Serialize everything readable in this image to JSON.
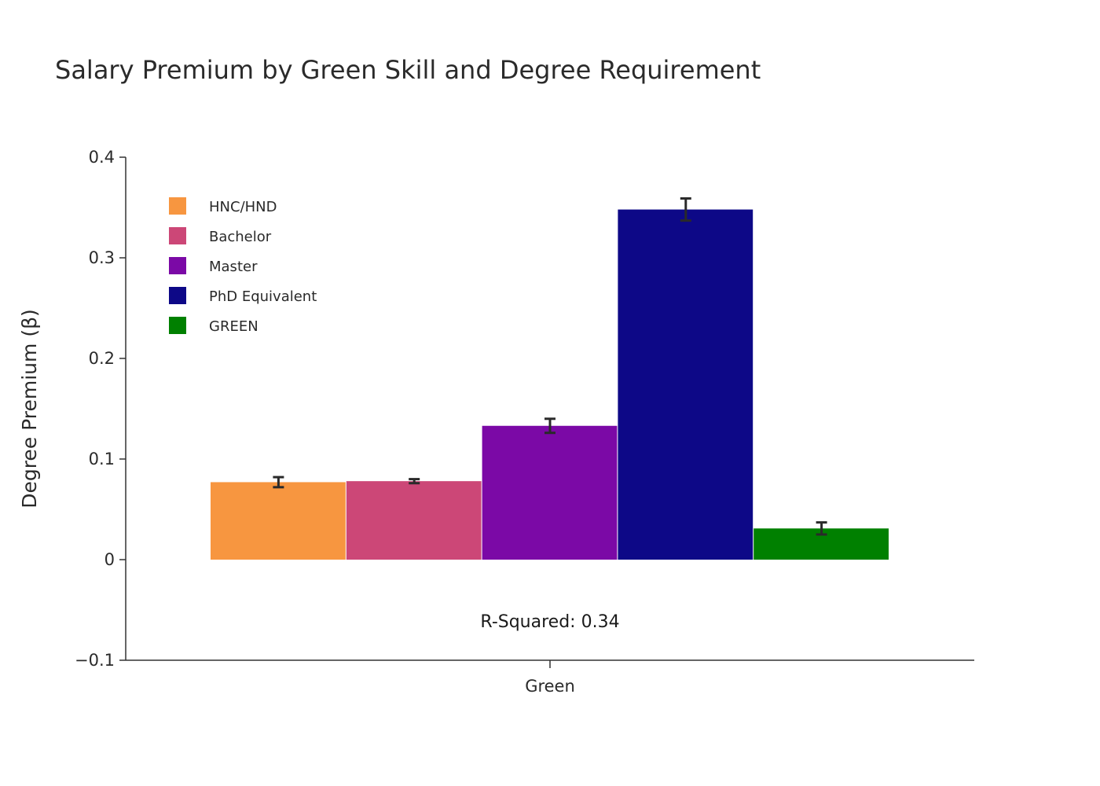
{
  "chart_data": {
    "type": "bar",
    "title": "Salary Premium by Green Skill and Degree Requirement",
    "xlabel": "",
    "ylabel": "Degree Premium (β)",
    "categories": [
      "Green"
    ],
    "ylim": [
      -0.1,
      0.4
    ],
    "yticks": [
      -0.1,
      0,
      0.1,
      0.2,
      0.3,
      0.4
    ],
    "ytick_labels": [
      "−0.1",
      "0",
      "0.1",
      "0.2",
      "0.3",
      "0.4"
    ],
    "legend_position": "top-left",
    "series": [
      {
        "name": "HNC/HND",
        "values": [
          0.077
        ],
        "error": [
          0.005
        ],
        "color": "#f79640"
      },
      {
        "name": "Bachelor",
        "values": [
          0.078
        ],
        "error": [
          0.002
        ],
        "color": "#cc4777"
      },
      {
        "name": "Master",
        "values": [
          0.133
        ],
        "error": [
          0.007
        ],
        "color": "#7b09a6"
      },
      {
        "name": "PhD Equivalent",
        "values": [
          0.348
        ],
        "error": [
          0.011
        ],
        "color": "#0d0887"
      },
      {
        "name": "GREEN",
        "values": [
          0.031
        ],
        "error": [
          0.006
        ],
        "color": "#008000"
      }
    ],
    "annotation": "R-Squared: 0.34"
  }
}
